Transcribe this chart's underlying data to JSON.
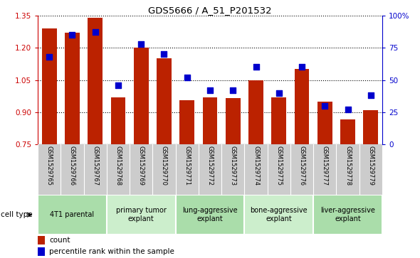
{
  "title": "GDS5666 / A_51_P201532",
  "samples": [
    "GSM1529765",
    "GSM1529766",
    "GSM1529767",
    "GSM1529768",
    "GSM1529769",
    "GSM1529770",
    "GSM1529771",
    "GSM1529772",
    "GSM1529773",
    "GSM1529774",
    "GSM1529775",
    "GSM1529776",
    "GSM1529777",
    "GSM1529778",
    "GSM1529779"
  ],
  "counts": [
    1.29,
    1.27,
    1.34,
    0.97,
    1.2,
    1.15,
    0.955,
    0.97,
    0.965,
    1.05,
    0.97,
    1.1,
    0.95,
    0.865,
    0.91
  ],
  "percentiles": [
    68,
    85,
    87,
    46,
    78,
    70,
    52,
    42,
    42,
    60,
    40,
    60,
    30,
    27,
    38
  ],
  "ylim_left": [
    0.75,
    1.35
  ],
  "ylim_right": [
    0,
    100
  ],
  "yticks_left": [
    0.75,
    0.9,
    1.05,
    1.2,
    1.35
  ],
  "yticks_right": [
    0,
    25,
    50,
    75,
    100
  ],
  "ytick_labels_right": [
    "0",
    "25",
    "50",
    "75",
    "100%"
  ],
  "bar_color": "#bb2200",
  "dot_color": "#0000cc",
  "groups": [
    {
      "label": "4T1 parental",
      "start": 0,
      "end": 3,
      "color": "#aaddaa"
    },
    {
      "label": "primary tumor\nexplant",
      "start": 3,
      "end": 6,
      "color": "#cceecc"
    },
    {
      "label": "lung-aggressive\nexplant",
      "start": 6,
      "end": 9,
      "color": "#aaddaa"
    },
    {
      "label": "bone-aggressive\nexplant",
      "start": 9,
      "end": 12,
      "color": "#cceecc"
    },
    {
      "label": "liver-aggressive\nexplant",
      "start": 12,
      "end": 15,
      "color": "#aaddaa"
    }
  ],
  "cell_type_label": "cell type",
  "legend_count_label": "count",
  "legend_percentile_label": "percentile rank within the sample",
  "tick_color_left": "#cc0000",
  "tick_color_right": "#0000cc",
  "dot_size": 28
}
